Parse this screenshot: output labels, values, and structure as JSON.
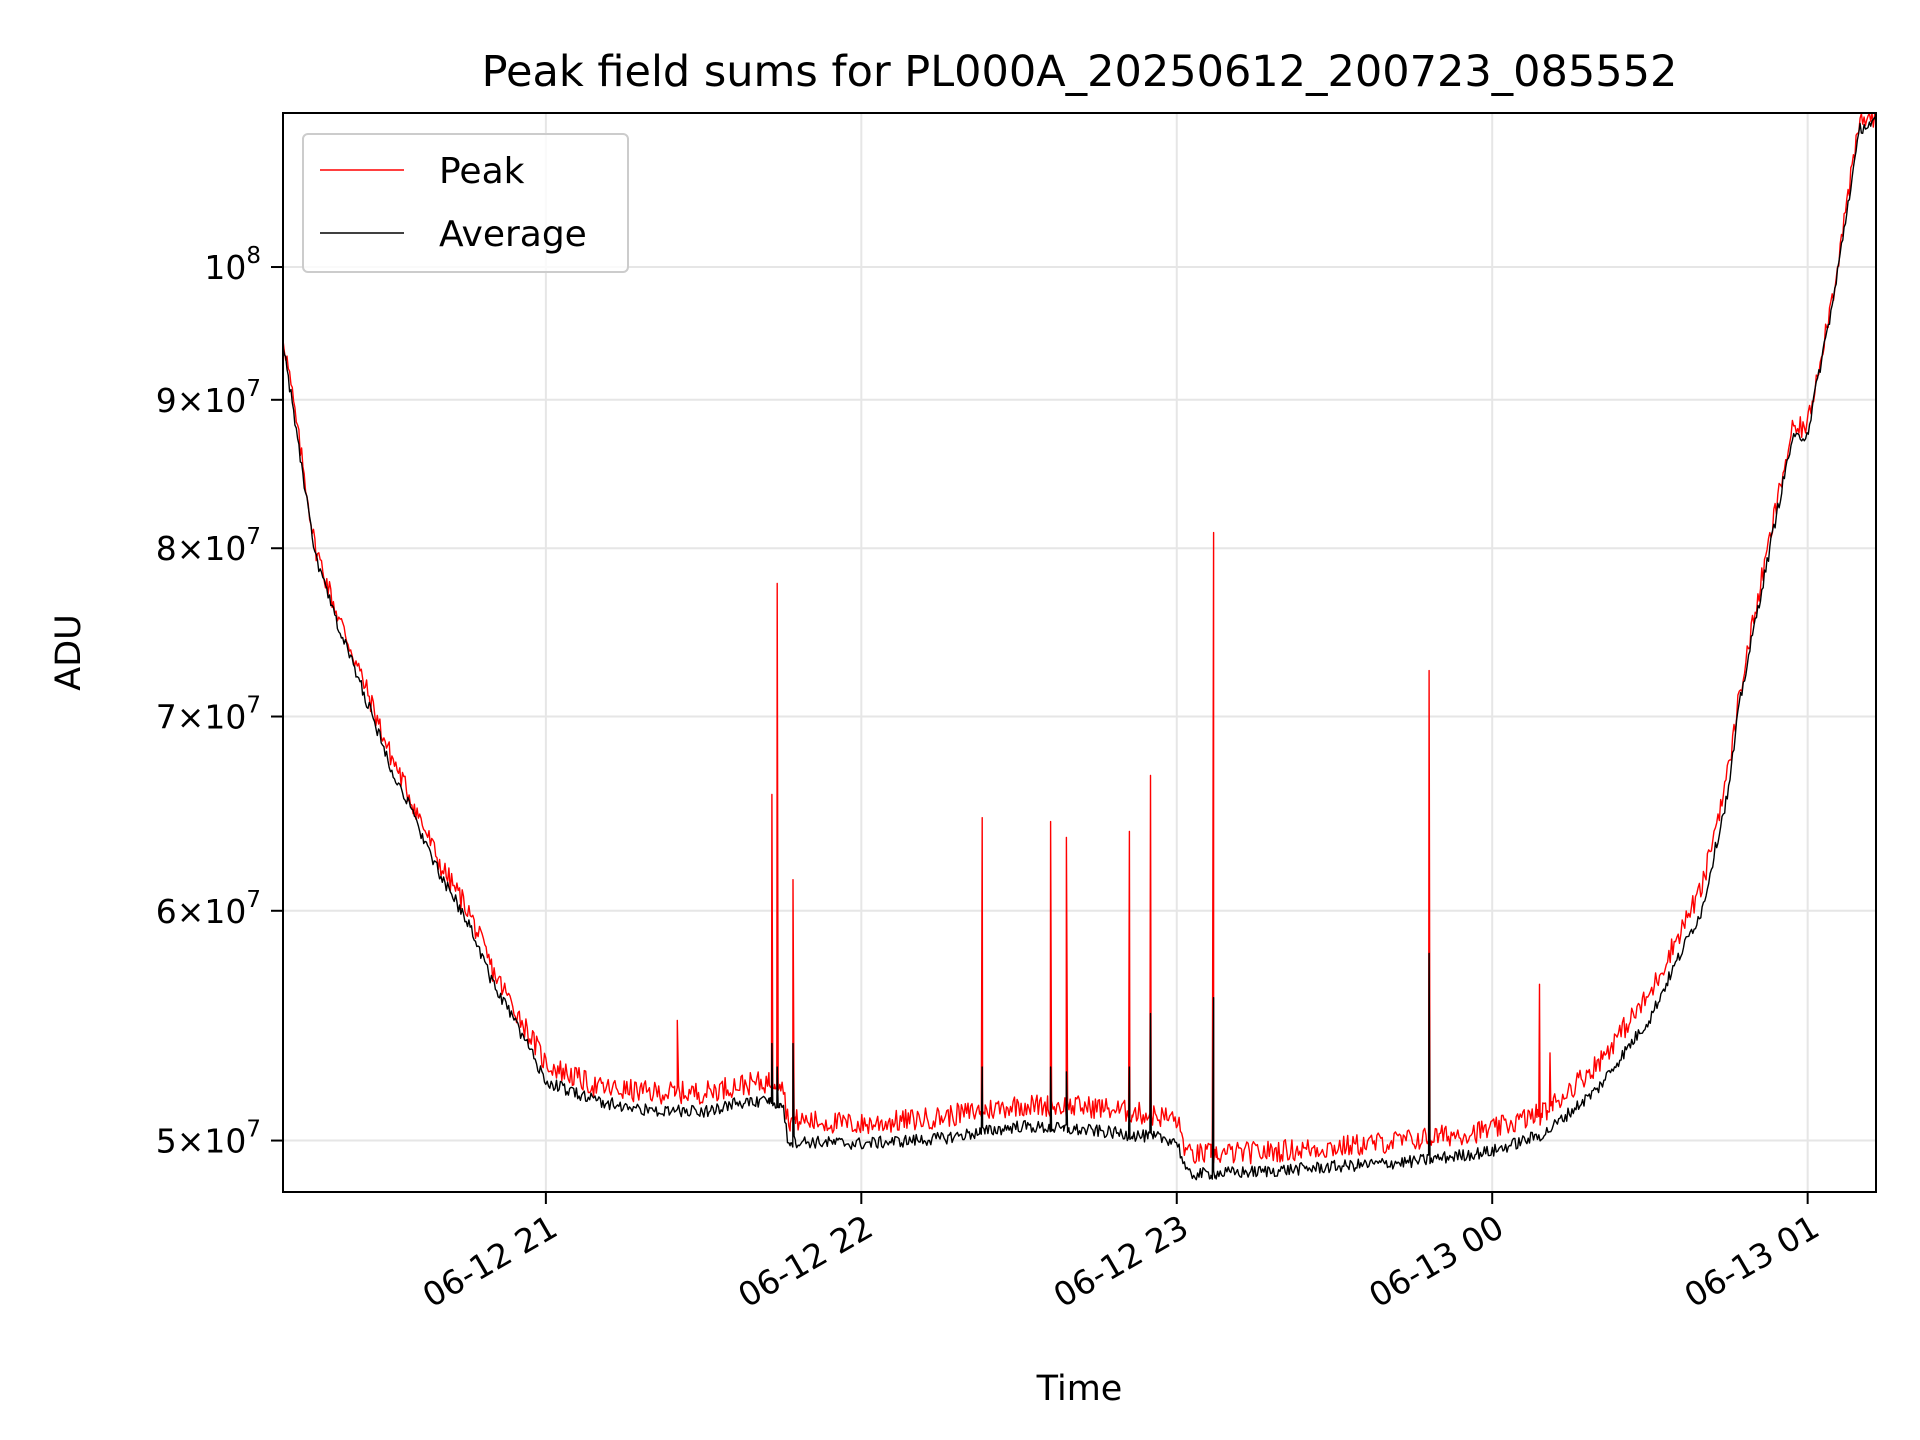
{
  "chart_data": {
    "type": "line",
    "title": "Peak field sums for PL000A_20250612_200723_085552",
    "xlabel": "Time",
    "ylabel": "ADU",
    "y_scale": "log",
    "grid": true,
    "legend_placement": "top-left",
    "x_range": [
      "2025-06-12 20:10",
      "2025-06-13 01:13"
    ],
    "ylim": [
      48000000,
      113000000
    ],
    "x_ticks": [
      {
        "value": "2025-06-12 21:00",
        "label": "06-12 21"
      },
      {
        "value": "2025-06-12 22:00",
        "label": "06-12 22"
      },
      {
        "value": "2025-06-12 23:00",
        "label": "06-12 23"
      },
      {
        "value": "2025-06-13 00:00",
        "label": "06-13 00"
      },
      {
        "value": "2025-06-13 01:00",
        "label": "06-13 01"
      }
    ],
    "y_ticks": [
      {
        "value": 50000000,
        "mantissa": "5",
        "exponent": "7"
      },
      {
        "value": 60000000,
        "mantissa": "6",
        "exponent": "7"
      },
      {
        "value": 70000000,
        "mantissa": "7",
        "exponent": "7"
      },
      {
        "value": 80000000,
        "mantissa": "8",
        "exponent": "7"
      },
      {
        "value": 90000000,
        "mantissa": "9",
        "exponent": "7"
      },
      {
        "value": 100000000,
        "mantissa": "",
        "exponent": "8"
      }
    ],
    "series": [
      {
        "name": "Peak",
        "color": "#ff0000",
        "points": [
          [
            "2025-06-12 20:10",
            94500000
          ],
          [
            "2025-06-12 20:13",
            87000000
          ],
          [
            "2025-06-12 20:16",
            80000000
          ],
          [
            "2025-06-12 20:20",
            76000000
          ],
          [
            "2025-06-12 20:25",
            72000000
          ],
          [
            "2025-06-12 20:30",
            68000000
          ],
          [
            "2025-06-12 20:35",
            65000000
          ],
          [
            "2025-06-12 20:40",
            62000000
          ],
          [
            "2025-06-12 20:45",
            60000000
          ],
          [
            "2025-06-12 20:50",
            57000000
          ],
          [
            "2025-06-12 20:55",
            55000000
          ],
          [
            "2025-06-12 21:00",
            53000000
          ],
          [
            "2025-06-12 21:10",
            52000000
          ],
          [
            "2025-06-12 21:20",
            51800000
          ],
          [
            "2025-06-12 21:30",
            51800000
          ],
          [
            "2025-06-12 21:36",
            52100000
          ],
          [
            "2025-06-12 21:45",
            52300000
          ],
          [
            "2025-06-12 21:46",
            50700000
          ],
          [
            "2025-06-12 22:00",
            50500000
          ],
          [
            "2025-06-12 22:15",
            50800000
          ],
          [
            "2025-06-12 22:30",
            51300000
          ],
          [
            "2025-06-12 22:45",
            51200000
          ],
          [
            "2025-06-12 22:58",
            50800000
          ],
          [
            "2025-06-12 23:00",
            50700000
          ],
          [
            "2025-06-12 23:02",
            49300000
          ],
          [
            "2025-06-12 23:15",
            49400000
          ],
          [
            "2025-06-12 23:30",
            49600000
          ],
          [
            "2025-06-12 23:45",
            49900000
          ],
          [
            "2025-06-13 00:00",
            50300000
          ],
          [
            "2025-06-13 00:10",
            51000000
          ],
          [
            "2025-06-13 00:20",
            53000000
          ],
          [
            "2025-06-13 00:30",
            56000000
          ],
          [
            "2025-06-13 00:40",
            61000000
          ],
          [
            "2025-06-13 00:45",
            67000000
          ],
          [
            "2025-06-13 00:47",
            71000000
          ],
          [
            "2025-06-13 00:52",
            79000000
          ],
          [
            "2025-06-13 00:57",
            87500000
          ],
          [
            "2025-06-13 01:00",
            88000000
          ],
          [
            "2025-06-13 01:05",
            98000000
          ],
          [
            "2025-06-13 01:10",
            112000000
          ],
          [
            "2025-06-13 01:13",
            112500000
          ]
        ],
        "spikes": [
          [
            "2025-06-12 21:25",
            55000000
          ],
          [
            "2025-06-12 21:43",
            65800000
          ],
          [
            "2025-06-12 21:44",
            77800000
          ],
          [
            "2025-06-12 21:47",
            61500000
          ],
          [
            "2025-06-12 22:23",
            64600000
          ],
          [
            "2025-06-12 22:36",
            64400000
          ],
          [
            "2025-06-12 22:39",
            63600000
          ],
          [
            "2025-06-12 22:51",
            63900000
          ],
          [
            "2025-06-12 22:55",
            66800000
          ],
          [
            "2025-06-12 23:07",
            81000000
          ],
          [
            "2025-06-12 23:48",
            72600000
          ],
          [
            "2025-06-13 00:09",
            56600000
          ],
          [
            "2025-06-13 00:11",
            53600000
          ]
        ]
      },
      {
        "name": "Average",
        "color": "#000000",
        "points": [
          [
            "2025-06-12 20:10",
            94000000
          ],
          [
            "2025-06-12 20:13",
            86500000
          ],
          [
            "2025-06-12 20:16",
            79500000
          ],
          [
            "2025-06-12 20:20",
            75500000
          ],
          [
            "2025-06-12 20:25",
            71500000
          ],
          [
            "2025-06-12 20:30",
            67500000
          ],
          [
            "2025-06-12 20:35",
            64500000
          ],
          [
            "2025-06-12 20:40",
            61500000
          ],
          [
            "2025-06-12 20:45",
            59500000
          ],
          [
            "2025-06-12 20:50",
            56500000
          ],
          [
            "2025-06-12 20:55",
            54500000
          ],
          [
            "2025-06-12 21:00",
            52300000
          ],
          [
            "2025-06-12 21:10",
            51500000
          ],
          [
            "2025-06-12 21:20",
            51100000
          ],
          [
            "2025-06-12 21:30",
            51100000
          ],
          [
            "2025-06-12 21:36",
            51400000
          ],
          [
            "2025-06-12 21:45",
            51500000
          ],
          [
            "2025-06-12 21:46",
            49900000
          ],
          [
            "2025-06-12 22:00",
            49800000
          ],
          [
            "2025-06-12 22:15",
            50000000
          ],
          [
            "2025-06-12 22:30",
            50500000
          ],
          [
            "2025-06-12 22:45",
            50300000
          ],
          [
            "2025-06-12 22:58",
            50000000
          ],
          [
            "2025-06-12 23:00",
            49900000
          ],
          [
            "2025-06-12 23:02",
            48600000
          ],
          [
            "2025-06-12 23:15",
            48700000
          ],
          [
            "2025-06-12 23:30",
            48900000
          ],
          [
            "2025-06-12 23:45",
            49100000
          ],
          [
            "2025-06-13 00:00",
            49500000
          ],
          [
            "2025-06-13 00:10",
            50200000
          ],
          [
            "2025-06-13 00:20",
            52000000
          ],
          [
            "2025-06-13 00:30",
            55000000
          ],
          [
            "2025-06-13 00:40",
            60000000
          ],
          [
            "2025-06-13 00:45",
            66000000
          ],
          [
            "2025-06-13 00:47",
            70500000
          ],
          [
            "2025-06-13 00:52",
            78500000
          ],
          [
            "2025-06-13 00:57",
            87000000
          ],
          [
            "2025-06-13 01:00",
            87500000
          ],
          [
            "2025-06-13 01:05",
            97500000
          ],
          [
            "2025-06-13 01:10",
            111500000
          ],
          [
            "2025-06-13 01:13",
            112000000
          ]
        ],
        "spikes": [
          [
            "2025-06-12 21:43",
            54000000
          ],
          [
            "2025-06-12 21:44",
            53000000
          ],
          [
            "2025-06-12 21:47",
            54000000
          ],
          [
            "2025-06-12 22:23",
            53000000
          ],
          [
            "2025-06-12 22:36",
            53000000
          ],
          [
            "2025-06-12 22:39",
            52800000
          ],
          [
            "2025-06-12 22:51",
            53000000
          ],
          [
            "2025-06-12 22:55",
            55300000
          ],
          [
            "2025-06-12 23:07",
            56000000
          ],
          [
            "2025-06-12 23:48",
            58000000
          ]
        ]
      }
    ]
  }
}
